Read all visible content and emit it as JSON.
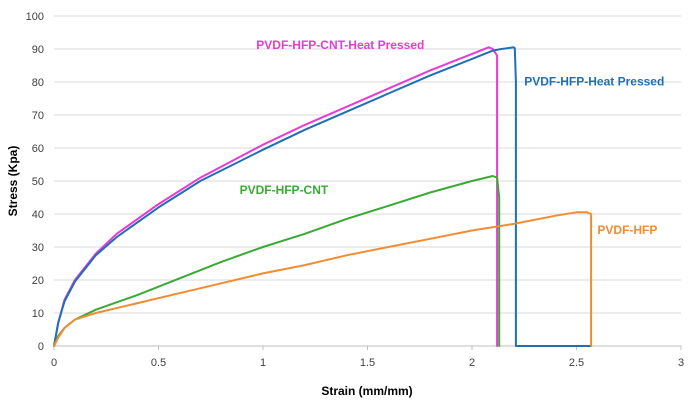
{
  "chart_data": {
    "type": "line",
    "title": "",
    "xlabel": "Strain (mm/mm)",
    "ylabel": "Stress (Kpa)",
    "xlim": [
      0,
      3
    ],
    "ylim": [
      0,
      100
    ],
    "x_ticks": [
      0,
      0.5,
      1,
      1.5,
      2,
      2.5,
      3
    ],
    "x_tick_labels": [
      "0",
      "0.5",
      "1",
      "1.5",
      "2",
      "2.5",
      "3"
    ],
    "y_ticks": [
      0,
      10,
      20,
      30,
      40,
      50,
      60,
      70,
      80,
      90,
      100
    ],
    "y_tick_labels": [
      "0",
      "10",
      "20",
      "30",
      "40",
      "50",
      "60",
      "70",
      "80",
      "90",
      "100"
    ],
    "grid": "horizontal",
    "series": [
      {
        "name": "PVDF-HFP-CNT-Heat Pressed",
        "color": "#e83ad6",
        "label_anchor": [
          1.37,
          90
        ],
        "label_align": "middle",
        "x": [
          0,
          0.02,
          0.05,
          0.1,
          0.2,
          0.3,
          0.5,
          0.7,
          1.0,
          1.2,
          1.4,
          1.6,
          1.8,
          2.0,
          2.08,
          2.1,
          2.11,
          2.12,
          2.12
        ],
        "y": [
          0,
          7,
          14,
          20,
          28,
          34,
          43,
          51,
          61,
          67,
          72.5,
          78,
          83.5,
          88.5,
          90.5,
          90,
          89,
          88,
          0
        ]
      },
      {
        "name": "PVDF-HFP-Heat Pressed",
        "color": "#1f6fb4",
        "label_anchor": [
          2.25,
          79
        ],
        "label_align": "start",
        "x": [
          0,
          0.02,
          0.05,
          0.1,
          0.2,
          0.3,
          0.5,
          0.7,
          1.0,
          1.2,
          1.4,
          1.6,
          1.8,
          2.0,
          2.1,
          2.14,
          2.2,
          2.205,
          2.21,
          2.21,
          2.21,
          2.57
        ],
        "y": [
          0,
          7,
          13.5,
          19.5,
          27.5,
          33,
          42,
          50,
          59.5,
          65.5,
          71,
          76.5,
          82,
          87,
          89.5,
          90,
          90.5,
          90.2,
          80,
          57,
          0,
          0
        ]
      },
      {
        "name": "PVDF-HFP-CNT",
        "color": "#3aaa35",
        "label_anchor": [
          1.1,
          46
        ],
        "label_align": "middle",
        "x": [
          0,
          0.02,
          0.05,
          0.1,
          0.2,
          0.4,
          0.6,
          0.8,
          1.0,
          1.2,
          1.4,
          1.6,
          1.8,
          2.0,
          2.1,
          2.12,
          2.13,
          2.13
        ],
        "y": [
          0,
          3,
          5.5,
          8,
          11,
          15.5,
          20.5,
          25.5,
          30,
          34,
          38.5,
          42.5,
          46.5,
          50,
          51.5,
          51,
          45,
          0
        ]
      },
      {
        "name": "PVDF-HFP",
        "color": "#f28c33",
        "label_anchor": [
          2.6,
          34
        ],
        "label_align": "start",
        "x": [
          0,
          0.02,
          0.05,
          0.1,
          0.2,
          0.4,
          0.6,
          0.8,
          1.0,
          1.2,
          1.4,
          1.6,
          1.8,
          2.0,
          2.2,
          2.4,
          2.5,
          2.55,
          2.57,
          2.57
        ],
        "y": [
          0,
          2.5,
          5.5,
          8,
          10,
          13,
          16,
          19,
          22,
          24.5,
          27.5,
          30,
          32.5,
          35,
          37,
          39.5,
          40.5,
          40.5,
          40,
          0
        ]
      }
    ]
  }
}
